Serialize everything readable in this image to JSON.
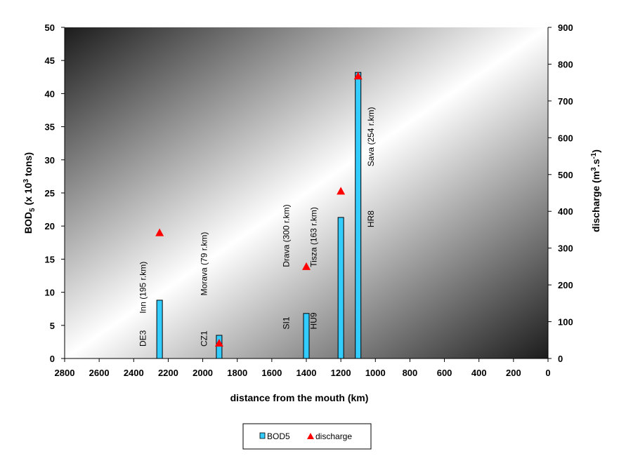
{
  "chart_data": {
    "type": "bar",
    "xlabel": "distance from the mouth (km)",
    "ylabel": "BOD5 (x 10³ tons)",
    "ylabel_parts": {
      "pre": "BOD",
      "sub": "5",
      "mid": " (x 10",
      "sup": "3",
      "post": " tons)"
    },
    "y2label": "discharge (m3.s-1)",
    "y2label_parts": {
      "pre": "discharge (m",
      "sup1": "3",
      "mid": ".s",
      "sup2": "-1",
      "post": ")"
    },
    "xlim": [
      2800,
      0
    ],
    "xticks": [
      2800,
      2600,
      2400,
      2200,
      2000,
      1800,
      1600,
      1400,
      1200,
      1000,
      800,
      600,
      400,
      200,
      0
    ],
    "ylim": [
      0,
      50
    ],
    "yticks": [
      0,
      5,
      10,
      15,
      20,
      25,
      30,
      35,
      40,
      45,
      50
    ],
    "y2lim": [
      0,
      900
    ],
    "y2ticks": [
      0,
      100,
      200,
      300,
      400,
      500,
      600,
      700,
      800,
      900
    ],
    "series": [
      {
        "name": "BOD5",
        "axis": "left",
        "kind": "bar",
        "color": "#33ccff",
        "points": [
          {
            "x": 2250,
            "y": 8.8
          },
          {
            "x": 1905,
            "y": 3.5
          },
          {
            "x": 1400,
            "y": 6.8
          },
          {
            "x": 1200,
            "y": 21.3
          },
          {
            "x": 1100,
            "y": 43.2
          }
        ]
      },
      {
        "name": "discharge",
        "axis": "right",
        "kind": "marker",
        "color": "#ff0000",
        "points": [
          {
            "x": 2250,
            "y": 342
          },
          {
            "x": 1905,
            "y": 42
          },
          {
            "x": 1400,
            "y": 250
          },
          {
            "x": 1200,
            "y": 455
          },
          {
            "x": 1100,
            "y": 768
          }
        ]
      }
    ],
    "annotations": [
      {
        "text": "DE3",
        "x": 2330,
        "y": 1.8
      },
      {
        "text": "Inn (195 r.km)",
        "x": 2330,
        "y": 6.8
      },
      {
        "text": "CZ1",
        "x": 1975,
        "y": 1.8
      },
      {
        "text": "Morava (79 r.km)",
        "x": 1975,
        "y": 9.5
      },
      {
        "text": "SI1",
        "x": 1500,
        "y": 4.4
      },
      {
        "text": "Drava (300 r.km)",
        "x": 1500,
        "y": 13.8
      },
      {
        "text": "HU9",
        "x": 1340,
        "y": 4.4
      },
      {
        "text": "Tisza (163 r.km)",
        "x": 1340,
        "y": 13.8
      },
      {
        "text": "HR8",
        "x": 1010,
        "y": 19.8
      },
      {
        "text": "Sava (254 r.km)",
        "x": 1010,
        "y": 29.0
      }
    ],
    "legend": {
      "position": "bottom",
      "entries": [
        "BOD5",
        "discharge"
      ]
    },
    "grid": false
  }
}
